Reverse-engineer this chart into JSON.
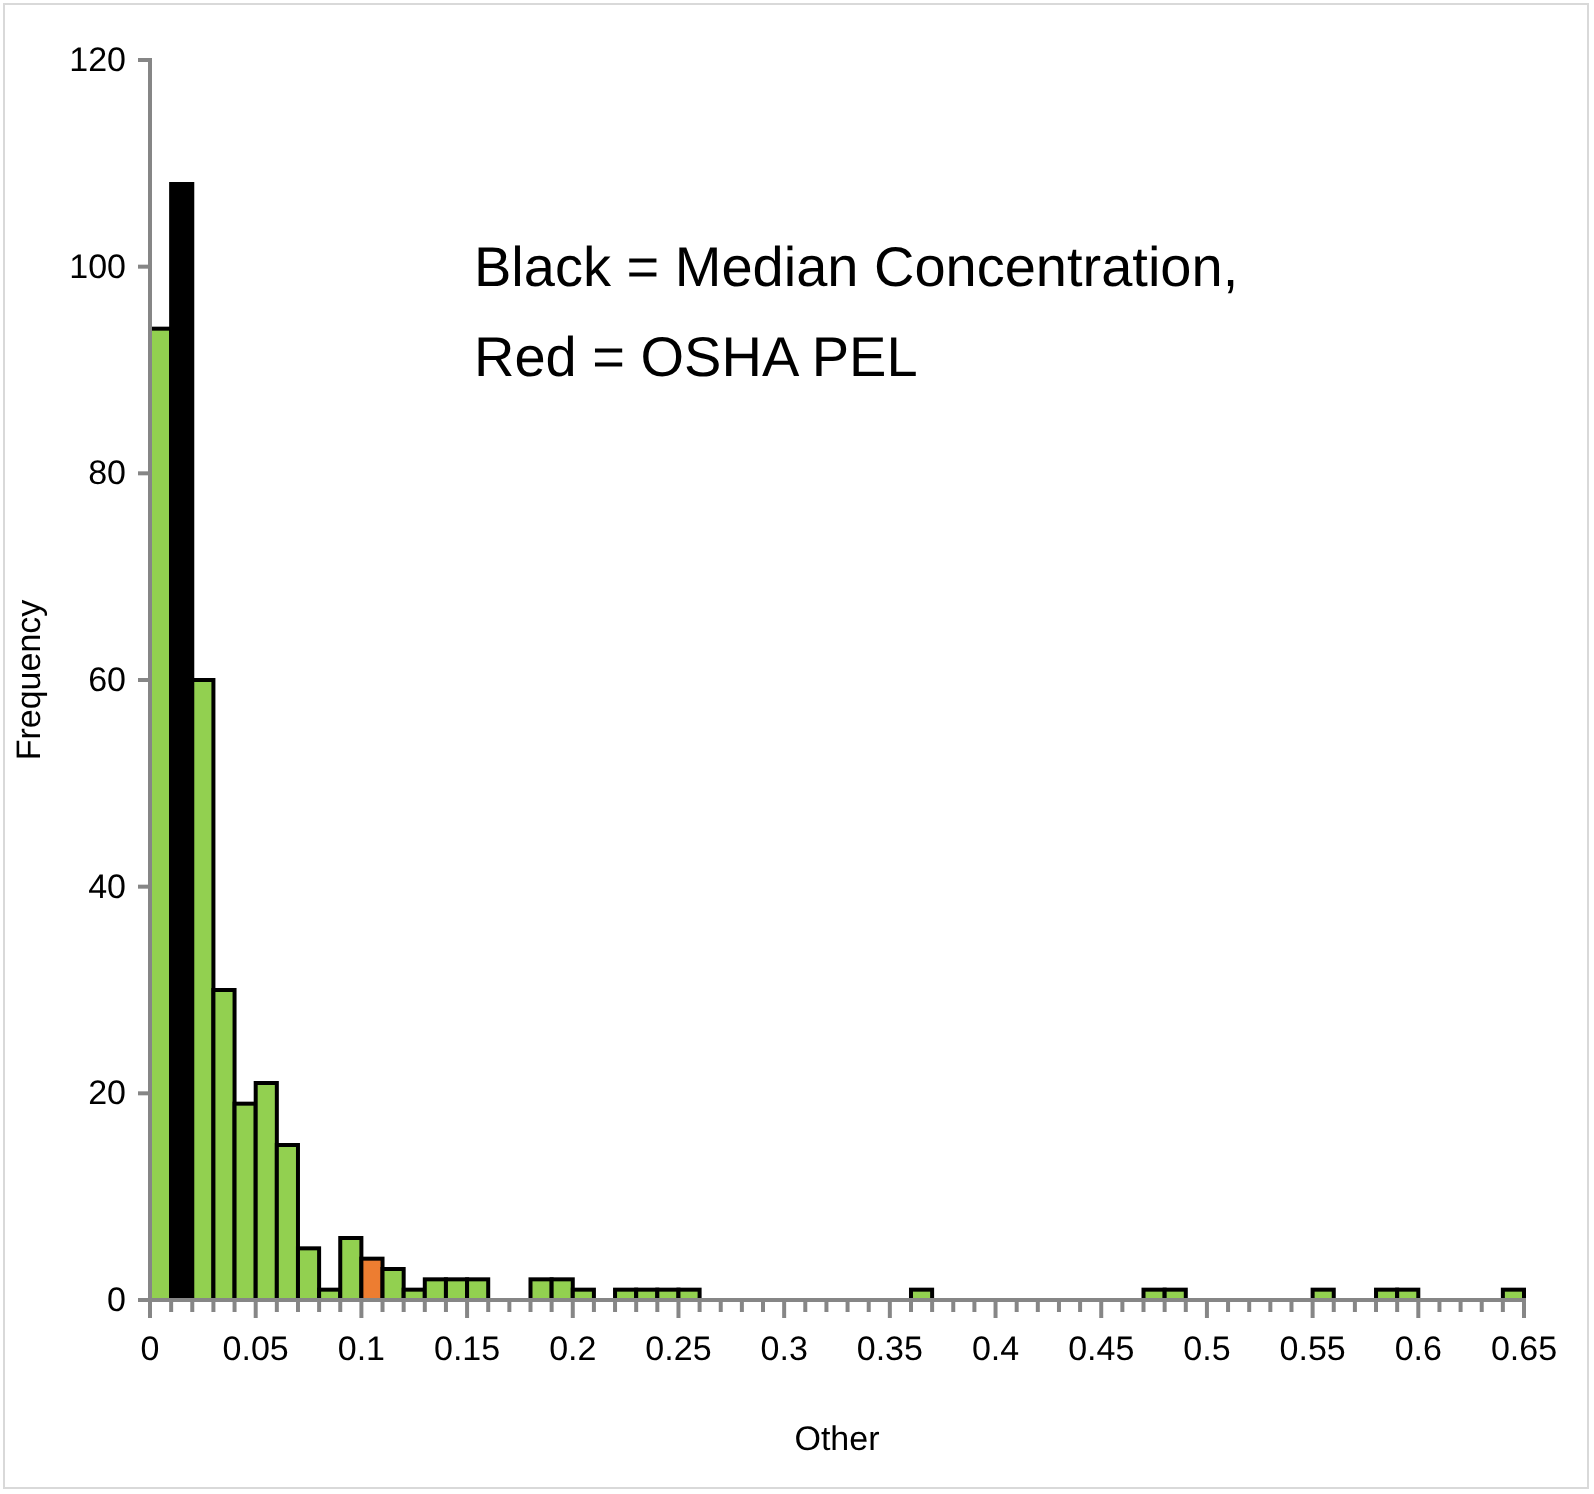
{
  "chart_data": {
    "type": "histogram",
    "xlabel": "Other",
    "ylabel": "Frequency",
    "annotations": [
      "Black = Median Concentration,",
      "Red = OSHA PEL"
    ],
    "bins": [
      0,
      0.01,
      0.02,
      0.03,
      0.04,
      0.05,
      0.06,
      0.07,
      0.08,
      0.09,
      0.1,
      0.11,
      0.12,
      0.13,
      0.14,
      0.15,
      0.16,
      0.17,
      0.18,
      0.19,
      0.2,
      0.21,
      0.22,
      0.23,
      0.24,
      0.25,
      0.26,
      0.27,
      0.28,
      0.29,
      0.3,
      0.31,
      0.32,
      0.33,
      0.34,
      0.35,
      0.36,
      0.37,
      0.38,
      0.39,
      0.4,
      0.41,
      0.42,
      0.43,
      0.44,
      0.45,
      0.46,
      0.47,
      0.48,
      0.49,
      0.5,
      0.51,
      0.52,
      0.53,
      0.54,
      0.55,
      0.56,
      0.57,
      0.58,
      0.59,
      0.6,
      0.61,
      0.62,
      0.63,
      0.64,
      0.65
    ],
    "values": [
      94,
      108,
      60,
      30,
      19,
      21,
      15,
      5,
      1,
      6,
      4,
      3,
      1,
      2,
      2,
      2,
      0,
      0,
      2,
      2,
      1,
      0,
      1,
      1,
      1,
      1,
      0,
      0,
      0,
      0,
      0,
      0,
      0,
      0,
      0,
      0,
      1,
      0,
      0,
      0,
      0,
      0,
      0,
      0,
      0,
      0,
      0,
      1,
      1,
      0,
      0,
      0,
      0,
      0,
      0,
      1,
      0,
      0,
      1,
      1,
      0,
      0,
      0,
      0,
      1
    ],
    "colors": [
      "#92d050",
      "#000000",
      "#92d050",
      "#92d050",
      "#92d050",
      "#92d050",
      "#92d050",
      "#92d050",
      "#92d050",
      "#92d050",
      "#ed7d31",
      "#92d050",
      "#92d050",
      "#92d050",
      "#92d050",
      "#92d050",
      "#92d050",
      "#92d050",
      "#92d050",
      "#92d050",
      "#92d050",
      "#92d050",
      "#92d050",
      "#92d050",
      "#92d050",
      "#92d050",
      "#92d050",
      "#92d050",
      "#92d050",
      "#92d050",
      "#92d050",
      "#92d050",
      "#92d050",
      "#92d050",
      "#92d050",
      "#92d050",
      "#92d050",
      "#92d050",
      "#92d050",
      "#92d050",
      "#92d050",
      "#92d050",
      "#92d050",
      "#92d050",
      "#92d050",
      "#92d050",
      "#92d050",
      "#92d050",
      "#92d050",
      "#92d050",
      "#92d050",
      "#92d050",
      "#92d050",
      "#92d050",
      "#92d050",
      "#92d050",
      "#92d050",
      "#92d050",
      "#92d050",
      "#92d050",
      "#92d050",
      "#92d050",
      "#92d050",
      "#92d050",
      "#92d050"
    ],
    "xlim": [
      0,
      0.65
    ],
    "xticks": [
      0,
      {
        "value": 0.01,
        "label": null
      },
      {
        "value": 0.02,
        "label": null
      },
      {
        "value": 0.03,
        "label": null
      },
      {
        "value": 0.04,
        "label": null
      },
      0.05,
      {
        "value": 0.06,
        "label": null
      },
      {
        "value": 0.07,
        "label": null
      },
      {
        "value": 0.08,
        "label": null
      },
      {
        "value": 0.09,
        "label": null
      },
      0.1,
      {
        "value": 0.11,
        "label": null
      },
      {
        "value": 0.12,
        "label": null
      },
      {
        "value": 0.13,
        "label": null
      },
      {
        "value": 0.14,
        "label": null
      },
      0.15,
      {
        "value": 0.16,
        "label": null
      },
      {
        "value": 0.17,
        "label": null
      },
      {
        "value": 0.18,
        "label": null
      },
      {
        "value": 0.19,
        "label": null
      },
      0.2,
      {
        "value": 0.21,
        "label": null
      },
      {
        "value": 0.22,
        "label": null
      },
      {
        "value": 0.23,
        "label": null
      },
      {
        "value": 0.24,
        "label": null
      },
      0.25,
      {
        "value": 0.26,
        "label": null
      },
      {
        "value": 0.27,
        "label": null
      },
      {
        "value": 0.28,
        "label": null
      },
      {
        "value": 0.29,
        "label": null
      },
      0.3,
      {
        "value": 0.31,
        "label": null
      },
      {
        "value": 0.32,
        "label": null
      },
      {
        "value": 0.33,
        "label": null
      },
      {
        "value": 0.34,
        "label": null
      },
      0.35,
      {
        "value": 0.36,
        "label": null
      },
      {
        "value": 0.37,
        "label": null
      },
      {
        "value": 0.38,
        "label": null
      },
      {
        "value": 0.39,
        "label": null
      },
      0.4,
      {
        "value": 0.41,
        "label": null
      },
      {
        "value": 0.42,
        "label": null
      },
      {
        "value": 0.43,
        "label": null
      },
      {
        "value": 0.44,
        "label": null
      },
      0.45,
      {
        "value": 0.46,
        "label": null
      },
      {
        "value": 0.47,
        "label": null
      },
      {
        "value": 0.48,
        "label": null
      },
      {
        "value": 0.49,
        "label": null
      },
      0.5,
      {
        "value": 0.51,
        "label": null
      },
      {
        "value": 0.52,
        "label": null
      },
      {
        "value": 0.53,
        "label": null
      },
      {
        "value": 0.54,
        "label": null
      },
      0.55,
      {
        "value": 0.56,
        "label": null
      },
      {
        "value": 0.57,
        "label": null
      },
      {
        "value": 0.58,
        "label": null
      },
      {
        "value": 0.59,
        "label": null
      },
      0.6,
      {
        "value": 0.61,
        "label": null
      },
      {
        "value": 0.62,
        "label": null
      },
      {
        "value": 0.63,
        "label": null
      },
      {
        "value": 0.64,
        "label": null
      },
      0.65
    ],
    "ylim": [
      0,
      120
    ],
    "yticks": [
      0,
      20,
      40,
      60,
      80,
      100,
      120
    ]
  }
}
